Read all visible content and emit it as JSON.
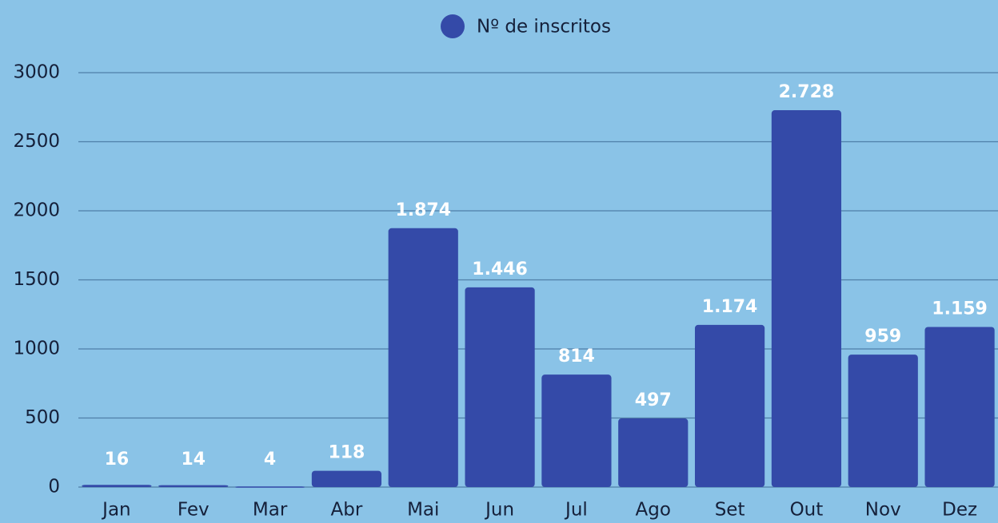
{
  "chart_data": {
    "type": "bar",
    "categories": [
      "Jan",
      "Fev",
      "Mar",
      "Abr",
      "Mai",
      "Jun",
      "Jul",
      "Ago",
      "Set",
      "Out",
      "Nov",
      "Dez"
    ],
    "series": [
      {
        "name": "Nº de inscritos",
        "color": "#344aa8",
        "values": [
          16,
          14,
          4,
          118,
          1874,
          1446,
          814,
          497,
          1174,
          2728,
          959,
          1159
        ],
        "value_labels": [
          "16",
          "14",
          "4",
          "118",
          "1.874",
          "1.446",
          "814",
          "497",
          "1.174",
          "2.728",
          "959",
          "1.159"
        ]
      }
    ],
    "ylim": [
      0,
      3000
    ],
    "yticks": [
      0,
      500,
      1000,
      1500,
      2000,
      2500,
      3000
    ],
    "grid": true,
    "legend": "top"
  }
}
